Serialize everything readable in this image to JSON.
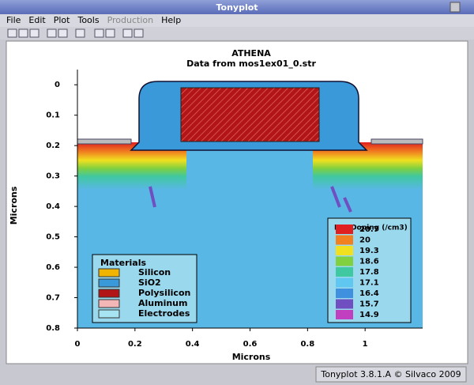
{
  "window": {
    "title": "Tonyplot",
    "menu": [
      "File",
      "Edit",
      "Plot",
      "Tools",
      "Production",
      "Help"
    ],
    "status": "Tonyplot 3.8.1.A © Silvaco 2009"
  },
  "chart_data": {
    "type": "contour",
    "title": "ATHENA",
    "subtitle": "Data from mos1ex01_0.str",
    "x_label": "Microns",
    "y_label": "Microns",
    "xlim": [
      0,
      1.2
    ],
    "ylim": [
      -0.05,
      0.8
    ],
    "y_inverted": true,
    "xticks": [
      0,
      0.2,
      0.4,
      0.6,
      0.8,
      1
    ],
    "yticks": [
      0,
      0.1,
      0.2,
      0.3,
      0.4,
      0.5,
      0.6,
      0.7,
      0.8
    ],
    "materials_title": "Materials",
    "materials": [
      {
        "name": "Silicon",
        "color": "#f0b400"
      },
      {
        "name": "SiO2",
        "color": "#3a9ad9"
      },
      {
        "name": "Polysilicon",
        "color": "#b21515"
      },
      {
        "name": "Aluminum",
        "color": "#f2b6b6"
      },
      {
        "name": "Electrodes",
        "color": "#a6e4f2"
      }
    ],
    "doping_title": "Net Doping (/cm3)",
    "doping_levels": [
      {
        "value": 20.7,
        "color": "#e02020"
      },
      {
        "value": 20,
        "color": "#f08020"
      },
      {
        "value": 19.3,
        "color": "#f0e020"
      },
      {
        "value": 18.6,
        "color": "#80d040"
      },
      {
        "value": 17.8,
        "color": "#40c8a0"
      },
      {
        "value": 17.1,
        "color": "#60c8f0"
      },
      {
        "value": 16.4,
        "color": "#4090e0"
      },
      {
        "value": 15.7,
        "color": "#7050c0"
      },
      {
        "value": 14.9,
        "color": "#c040c0"
      }
    ]
  }
}
